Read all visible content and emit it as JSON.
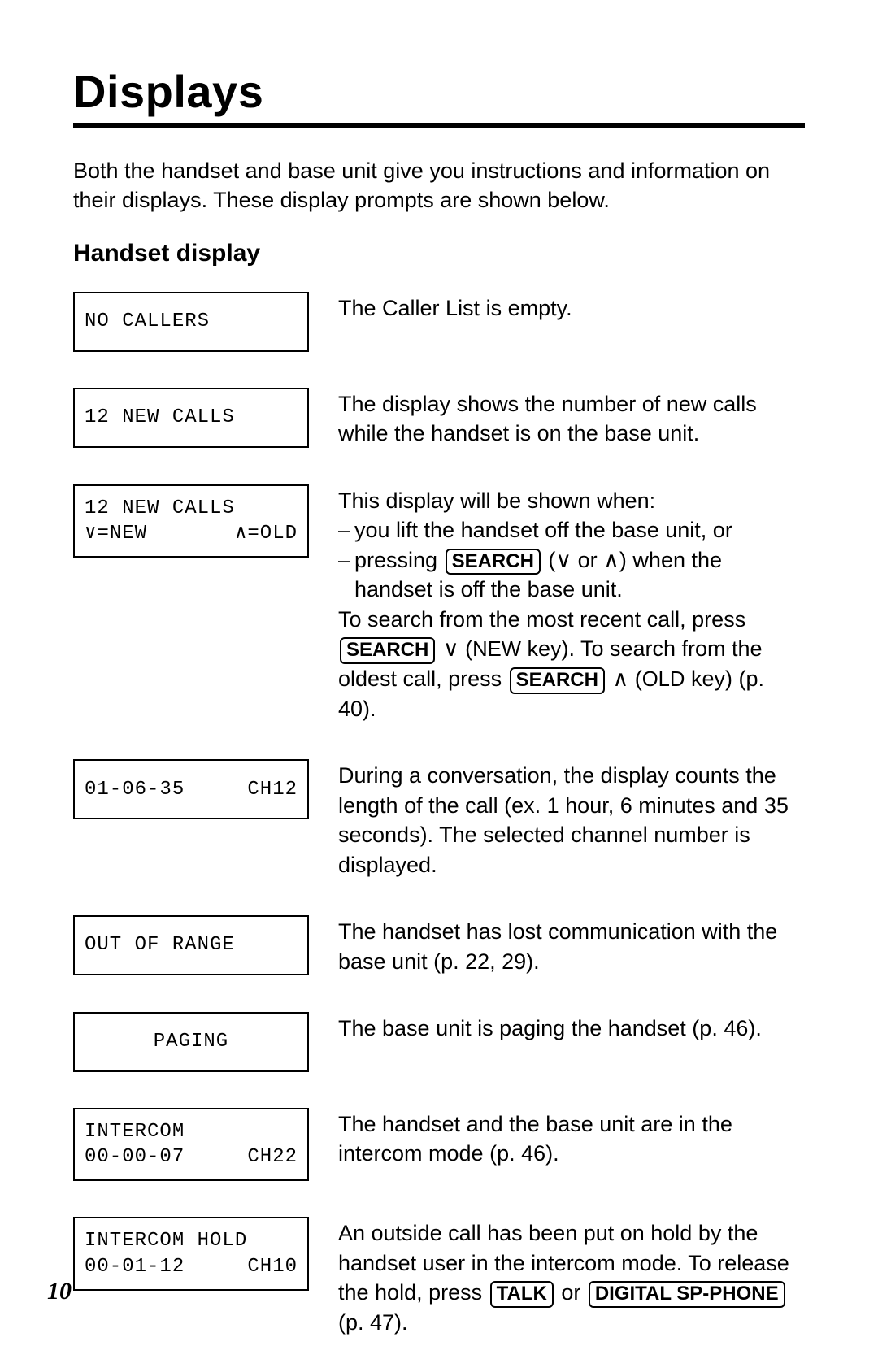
{
  "title": "Displays",
  "intro": "Both the handset and base unit give you instructions and information on their displays. These display prompts are shown below.",
  "subtitle": "Handset display",
  "page_number": "10",
  "keys": {
    "search": "SEARCH",
    "talk": "TALK",
    "sp_phone": "DIGITAL SP-PHONE"
  },
  "rows": [
    {
      "lcd": {
        "type": "single",
        "line1": "NO CALLERS"
      },
      "desc_plain": "The Caller List is empty."
    },
    {
      "lcd": {
        "type": "single",
        "line1": "12 NEW CALLS"
      },
      "desc_plain": "The display shows the number of new calls while the handset is on the base unit."
    },
    {
      "lcd": {
        "type": "two_split",
        "line1": "12 NEW CALLS",
        "left": "∨=NEW",
        "right": "∧=OLD"
      },
      "desc_rich": {
        "lead": "This display will be shown when:",
        "bullet1": "you lift the handset off the base unit, or",
        "bullet2a": "pressing ",
        "bullet2b": " (∨ or ∧) when the handset is off the base unit.",
        "tail1": "To search from the most recent call, press ",
        "tail2a": " ∨ (",
        "tail2b": "NEW",
        "tail2c": " key). To search from the oldest call, press ",
        "tail3a": " ∧ (",
        "tail3b": "OLD",
        "tail3c": " key) (p. 40)."
      }
    },
    {
      "lcd": {
        "type": "two_split_blank_top",
        "line1": "",
        "left": "01-06-35",
        "right": "CH12"
      },
      "desc_plain": "During a conversation, the display counts the length of the call (ex. 1 hour, 6 minutes and 35 seconds). The selected channel number is displayed."
    },
    {
      "lcd": {
        "type": "single",
        "line1": "OUT OF RANGE"
      },
      "desc_plain": "The handset has lost communication with the base unit (p. 22, 29)."
    },
    {
      "lcd": {
        "type": "single_center",
        "line1": "PAGING"
      },
      "desc_plain": "The base unit is paging the handset (p. 46)."
    },
    {
      "lcd": {
        "type": "two_split",
        "line1": "INTERCOM",
        "left": "00-00-07",
        "right": "CH22"
      },
      "desc_plain": "The handset and the base unit are in the intercom mode (p. 46)."
    },
    {
      "lcd": {
        "type": "two_split",
        "line1": "INTERCOM HOLD",
        "left": "00-01-12",
        "right": "CH10"
      },
      "desc_rich2": {
        "a": "An outside call has been put on hold by the handset user in the intercom mode. To release the hold, press ",
        "b": " or ",
        "c": " (p. 47)."
      }
    }
  ]
}
